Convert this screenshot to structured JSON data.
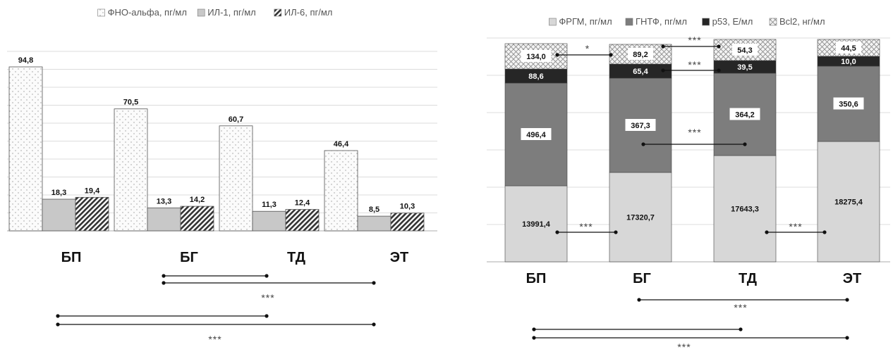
{
  "chart_data": [
    {
      "type": "bar",
      "categories": [
        "БП",
        "БГ",
        "ТД",
        "ЭТ"
      ],
      "series": [
        {
          "name": "ФНО-альфа, пг/мл",
          "values": [
            94.8,
            70.5,
            60.7,
            46.4
          ],
          "labels": [
            "94,8",
            "70,5",
            "60,7",
            "46,4"
          ],
          "color": "#fbfbfb",
          "pattern": "dots"
        },
        {
          "name": "ИЛ-1, пг/мл",
          "values": [
            18.3,
            13.3,
            11.3,
            8.5
          ],
          "labels": [
            "18,3",
            "13,3",
            "11,3",
            "8,5"
          ],
          "color": "#c8c8c8",
          "pattern": "solid"
        },
        {
          "name": "ИЛ-6, пг/мл",
          "values": [
            19.4,
            14.2,
            12.4,
            10.3
          ],
          "labels": [
            "19,4",
            "14,2",
            "12,4",
            "10,3"
          ],
          "color": "#6a6a6a",
          "pattern": "hatch"
        }
      ],
      "grid": true,
      "legend": "top",
      "significance": [
        {
          "from": "БГ",
          "to": "ТД",
          "label": ""
        },
        {
          "from": "БГ",
          "to": "ЭТ",
          "label": "***"
        },
        {
          "from": "БП",
          "to": "ТД",
          "label": ""
        },
        {
          "from": "БП",
          "to": "ЭТ",
          "label": "***"
        }
      ]
    },
    {
      "type": "bar",
      "stacked": true,
      "categories": [
        "БП",
        "БГ",
        "ТД",
        "ЭТ"
      ],
      "series": [
        {
          "name": "ФРГМ, пг/мл",
          "values": [
            13991.4,
            17320.7,
            17643.3,
            18275.4
          ],
          "labels": [
            "13991,4",
            "17320,7",
            "17643,3",
            "18275,4"
          ],
          "color": "#d7d7d7",
          "pattern": "solid"
        },
        {
          "name": "ГНТФ, пг/мл",
          "values": [
            496.4,
            367.3,
            364.2,
            350.6
          ],
          "labels": [
            "496,4",
            "367,3",
            "364,2",
            "350,6"
          ],
          "color": "#7d7d7d",
          "pattern": "solid"
        },
        {
          "name": "p53, Е/мл",
          "values": [
            88.6,
            65.4,
            39.5,
            10.0
          ],
          "labels": [
            "88,6",
            "65,4",
            "39,5",
            "10,0"
          ],
          "color": "#262626",
          "pattern": "solid"
        },
        {
          "name": "Bcl2, нг/мл",
          "values": [
            134.0,
            89.2,
            54.3,
            44.5
          ],
          "labels": [
            "134,0",
            "89,2",
            "54,3",
            "44,5"
          ],
          "color": "#f2f2f2",
          "pattern": "cross"
        }
      ],
      "grid": true,
      "legend": "top",
      "significance": [
        {
          "from": "БП",
          "to": "БГ",
          "series": "Bcl2, нг/мл",
          "label": "*"
        },
        {
          "from": "БГ",
          "to": "ТД",
          "series": "Bcl2, нг/мл",
          "label": "***"
        },
        {
          "from": "БГ",
          "to": "ТД",
          "series": "p53, Е/мл",
          "label": "***"
        },
        {
          "from": "БГ",
          "to": "ТД",
          "series": "ГНТФ, пг/мл",
          "label": "***"
        },
        {
          "from": "БП",
          "to": "БГ",
          "series": "ФРГМ, пг/мл",
          "label": "***"
        },
        {
          "from": "ТД",
          "to": "ЭТ",
          "series": "ФРГМ, пг/мл",
          "label": "***"
        },
        {
          "from": "БГ",
          "to": "ЭТ",
          "label": "***"
        },
        {
          "from": "БП",
          "to": "ТД",
          "label": ""
        },
        {
          "from": "БП",
          "to": "ЭТ",
          "label": "***"
        }
      ]
    }
  ]
}
